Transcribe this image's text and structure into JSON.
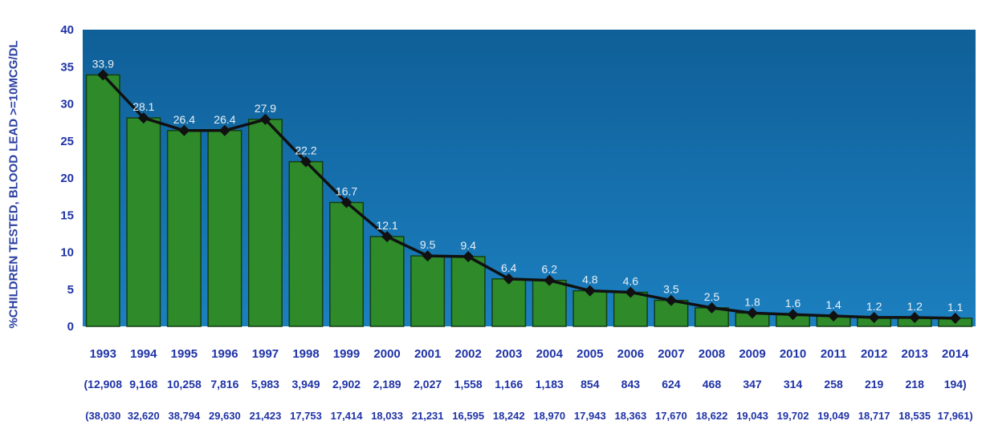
{
  "chart_data": {
    "type": "bar",
    "ylabel": "%CHILDREN TESTED, BLOOD LEAD >=10MCG/DL",
    "ylim": [
      0,
      40
    ],
    "yticks": [
      "0",
      "5",
      "10",
      "15",
      "20",
      "25",
      "30",
      "35",
      "40"
    ],
    "categories": [
      "1993",
      "1994",
      "1995",
      "1996",
      "1997",
      "1998",
      "1999",
      "2000",
      "2001",
      "2002",
      "2003",
      "2004",
      "2005",
      "2006",
      "2007",
      "2008",
      "2009",
      "2010",
      "2011",
      "2012",
      "2013",
      "2014"
    ],
    "values": [
      33.9,
      28.1,
      26.4,
      26.4,
      27.9,
      22.2,
      16.7,
      12.1,
      9.5,
      9.4,
      6.4,
      6.2,
      4.8,
      4.6,
      3.5,
      2.5,
      1.8,
      1.6,
      1.4,
      1.2,
      1.2,
      1.1
    ],
    "value_labels": [
      "33.9",
      "28.1",
      "26.4",
      "26.4",
      "27.9",
      "22.2",
      "16.7",
      "12.1",
      "9.5",
      "9.4",
      "6.4",
      "6.2",
      "4.8",
      "4.6",
      "3.5",
      "2.5",
      "1.8",
      "1.6",
      "1.4",
      "1.2",
      "1.2",
      "1.1"
    ],
    "positives_row": [
      "(12,908",
      "9,168",
      "10,258",
      "7,816",
      "5,983",
      "3,949",
      "2,902",
      "2,189",
      "2,027",
      "1,558",
      "1,166",
      "1,183",
      "854",
      "843",
      "624",
      "468",
      "347",
      "314",
      "258",
      "219",
      "218",
      "194)"
    ],
    "tested_row": [
      "(38,030",
      "32,620",
      "38,794",
      "29,630",
      "21,423",
      "17,753",
      "17,414",
      "18,033",
      "21,231",
      "16,595",
      "18,242",
      "18,970",
      "17,943",
      "18,363",
      "17,670",
      "18,622",
      "19,043",
      "19,702",
      "19,049",
      "18,717",
      "18,535",
      "17,961)"
    ],
    "line_overlay": true,
    "grid": false,
    "colors": {
      "plot_bg": "#1c7fbf",
      "plot_bg_top": "#0f5f98",
      "bar": "#2f8a2a",
      "bar_edge": "#133f14",
      "line": "#111111",
      "marker": "#111111",
      "value_label": "#e9f1f7",
      "axis_text": "#1f33a6"
    }
  }
}
